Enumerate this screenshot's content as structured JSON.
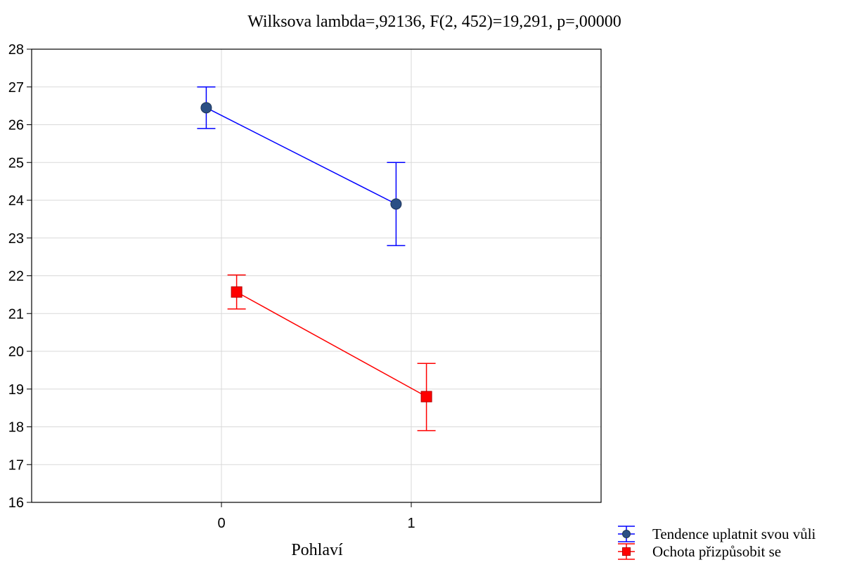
{
  "chart_data": {
    "type": "line",
    "title": "Wilksova lambda=,92136, F(2, 452)=19,291, p=,00000",
    "xlabel": "Pohlaví",
    "ylabel": "",
    "categories": [
      "0",
      "1"
    ],
    "xlim": [
      -1,
      2
    ],
    "ylim": [
      16,
      28
    ],
    "yticks": [
      16,
      17,
      18,
      19,
      20,
      21,
      22,
      23,
      24,
      25,
      26,
      27,
      28
    ],
    "grid": true,
    "legend_position": "bottom-right",
    "series": [
      {
        "name": "Tendence uplatnit svou vůli",
        "color": "#0000ff",
        "marker_color": "#2b4f85",
        "marker": "circle",
        "offset": -0.08,
        "values": [
          26.45,
          23.9
        ],
        "error_low": [
          25.9,
          22.8
        ],
        "error_high": [
          27.0,
          25.0
        ]
      },
      {
        "name": "Ochota přizpůsobit se",
        "color": "#ff0000",
        "marker_color": "#ff0000",
        "marker": "square",
        "offset": 0.08,
        "values": [
          21.57,
          18.8
        ],
        "error_low": [
          21.12,
          17.9
        ],
        "error_high": [
          22.02,
          19.68
        ]
      }
    ]
  }
}
